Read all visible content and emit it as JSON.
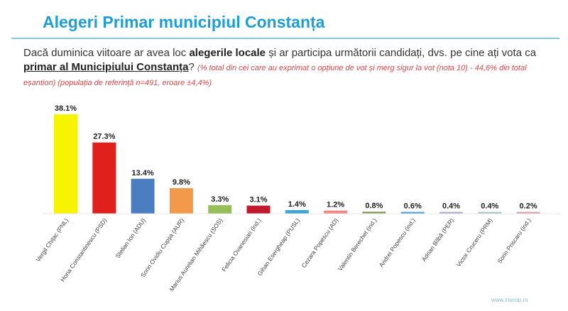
{
  "header": {
    "title": "Alegeri Primar municipiul Constanța"
  },
  "question": {
    "part1": "Dacă duminica viitoare ar avea loc ",
    "bold1": "alegerile locale",
    "part2": " și ar participa următorii candidați, dvs. pe cine ați vota ca ",
    "bold2": "primar al Municipiului Constanța",
    "part3": "? ",
    "note": "(% total din cei care au exprimat o opțiune de vot și merg sigur la vot (nota 10) - 44,6% din total eșantion) (populația de referință n=491, eroare ±4,4%)"
  },
  "footer": {
    "text": "www.inscop.ro"
  },
  "chart_data": {
    "type": "bar",
    "categories": [
      "Vergil Chițac (PNL)",
      "Horia Constantinescu (PSD)",
      "Stelian Ion (ADU)",
      "Sorin Ovidiu Cupșa (AUR)",
      "Marius Aurelian Mihăescu (SOS)",
      "Felicia Ovanesian (ind.)",
      "Gihan Esergheap (PUSL)",
      "Cezara Popescu (AD)",
      "Valentin Berechet (ind.)",
      "Andrei Popescu (ind.)",
      "Adrian Bîlbă (PER)",
      "Victor Cruceru (PRM)",
      "Sorin Priscaru (ind.)"
    ],
    "values": [
      38.1,
      27.3,
      13.4,
      9.8,
      3.3,
      3.1,
      1.4,
      1.2,
      0.8,
      0.6,
      0.4,
      0.4,
      0.2
    ],
    "value_labels": [
      "38.1%",
      "27.3%",
      "13.4%",
      "9.8%",
      "3.3%",
      "3.1%",
      "1.4%",
      "1.2%",
      "0.8%",
      "0.6%",
      "0.4%",
      "0.4%",
      "0.2%"
    ],
    "colors": [
      "#f6f400",
      "#e0201c",
      "#4a7ec0",
      "#f29a4a",
      "#96bf57",
      "#c0192b",
      "#3fa7cf",
      "#f08686",
      "#8e9e62",
      "#4a9fd0",
      "#b0a7c8",
      "#a9c4c8",
      "#d6a0a0"
    ],
    "ylim": [
      0,
      40
    ]
  }
}
